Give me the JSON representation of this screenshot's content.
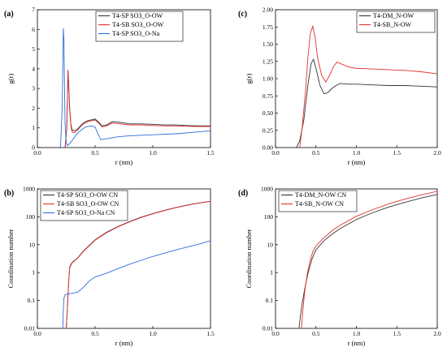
{
  "chart_data": [
    {
      "type": "line",
      "panel": "(a)",
      "xlabel": "r (nm)",
      "ylabel": "g(r)",
      "xlim": [
        0,
        1.5
      ],
      "ylim": [
        0,
        7
      ],
      "xticks": [
        "0.0",
        "0.5",
        "1.0",
        "1.5"
      ],
      "yticks": [
        "0",
        "1",
        "2",
        "3",
        "4",
        "5",
        "6",
        "7"
      ],
      "yscale": "linear",
      "legend_position": "top-right",
      "series": [
        {
          "name": "T4-SP SO3_O-OW",
          "color": "#333333",
          "x": [
            0.24,
            0.255,
            0.265,
            0.27,
            0.28,
            0.29,
            0.3,
            0.32,
            0.35,
            0.38,
            0.4,
            0.43,
            0.46,
            0.5,
            0.53,
            0.56,
            0.6,
            0.65,
            0.7,
            0.8,
            0.9,
            1.0,
            1.1,
            1.2,
            1.3,
            1.4,
            1.5
          ],
          "y": [
            0,
            1.0,
            3.9,
            3.4,
            2.0,
            1.2,
            0.9,
            0.85,
            0.95,
            1.15,
            1.25,
            1.35,
            1.4,
            1.45,
            1.3,
            1.1,
            1.15,
            1.32,
            1.3,
            1.2,
            1.2,
            1.18,
            1.15,
            1.15,
            1.12,
            1.1,
            1.1
          ]
        },
        {
          "name": "T4-SB SO3_O-OW",
          "color": "#e03030",
          "x": [
            0.24,
            0.255,
            0.265,
            0.27,
            0.28,
            0.29,
            0.3,
            0.32,
            0.35,
            0.38,
            0.4,
            0.43,
            0.46,
            0.5,
            0.53,
            0.56,
            0.6,
            0.65,
            0.7,
            0.8,
            0.9,
            1.0,
            1.1,
            1.2,
            1.3,
            1.4,
            1.5
          ],
          "y": [
            0,
            1.0,
            3.95,
            3.3,
            1.9,
            1.1,
            0.8,
            0.75,
            0.9,
            1.1,
            1.2,
            1.3,
            1.35,
            1.4,
            1.25,
            1.05,
            1.1,
            1.25,
            1.22,
            1.15,
            1.15,
            1.12,
            1.1,
            1.1,
            1.08,
            1.07,
            1.07
          ]
        },
        {
          "name": "T4-SP SO3_O-Na",
          "color": "#2a6fdb",
          "x": [
            0.2,
            0.215,
            0.225,
            0.23,
            0.235,
            0.24,
            0.25,
            0.26,
            0.28,
            0.3,
            0.33,
            0.37,
            0.42,
            0.46,
            0.5,
            0.52,
            0.55,
            0.6,
            0.7,
            0.8,
            1.0,
            1.2,
            1.4,
            1.5
          ],
          "y": [
            0,
            2.0,
            6.05,
            5.5,
            3.0,
            1.2,
            0.25,
            0.1,
            0.2,
            0.35,
            0.6,
            0.85,
            1.05,
            1.1,
            1.05,
            0.75,
            0.4,
            0.45,
            0.55,
            0.6,
            0.65,
            0.7,
            0.8,
            0.85
          ]
        }
      ]
    },
    {
      "type": "line",
      "panel": "(b)",
      "xlabel": "r (nm)",
      "ylabel": "Coordination number",
      "xlim": [
        0,
        1.5
      ],
      "ylim": [
        0.01,
        1000
      ],
      "xticks": [
        "0.0",
        "0.5",
        "1.0",
        "1.5"
      ],
      "yticks": [
        "0.01",
        "0.1",
        "1",
        "10",
        "100",
        "1000"
      ],
      "yscale": "log",
      "legend_position": "top-left",
      "series": [
        {
          "name": "T4-SP SO3_O-OW CN",
          "color": "#333333",
          "x": [
            0.25,
            0.26,
            0.27,
            0.28,
            0.3,
            0.35,
            0.4,
            0.5,
            0.6,
            0.7,
            0.8,
            0.9,
            1.0,
            1.1,
            1.2,
            1.3,
            1.4,
            1.5
          ],
          "y": [
            0.01,
            0.05,
            0.4,
            1.6,
            2.3,
            3.4,
            6.0,
            15,
            28,
            45,
            68,
            97,
            130,
            170,
            215,
            265,
            315,
            360
          ]
        },
        {
          "name": "T4-SB SO3_O-OW CN",
          "color": "#e03030",
          "x": [
            0.25,
            0.26,
            0.27,
            0.28,
            0.3,
            0.35,
            0.4,
            0.5,
            0.6,
            0.7,
            0.8,
            0.9,
            1.0,
            1.1,
            1.2,
            1.3,
            1.4,
            1.5
          ],
          "y": [
            0.01,
            0.05,
            0.4,
            1.5,
            2.2,
            3.3,
            5.8,
            14.5,
            27,
            44,
            66,
            95,
            128,
            168,
            212,
            262,
            312,
            355
          ]
        },
        {
          "name": "T4-SP SO3_O-Na CN",
          "color": "#2a6fdb",
          "x": [
            0.22,
            0.225,
            0.23,
            0.24,
            0.26,
            0.3,
            0.35,
            0.4,
            0.45,
            0.5,
            0.6,
            0.7,
            0.8,
            1.0,
            1.2,
            1.4,
            1.5
          ],
          "y": [
            0.01,
            0.05,
            0.12,
            0.16,
            0.17,
            0.18,
            0.2,
            0.3,
            0.5,
            0.7,
            0.95,
            1.4,
            2.0,
            3.8,
            6.5,
            10.5,
            14
          ]
        }
      ]
    },
    {
      "type": "line",
      "panel": "(c)",
      "xlabel": "r (nm)",
      "ylabel": "g(r)",
      "xlim": [
        0,
        2.0
      ],
      "ylim": [
        0,
        2.0
      ],
      "xticks": [
        "0.0",
        "0.5",
        "1.0",
        "1.5",
        "2.0"
      ],
      "yticks": [
        "0.00",
        "0.25",
        "0.50",
        "0.75",
        "1.00",
        "1.25",
        "1.50",
        "1.75",
        "2.00"
      ],
      "yscale": "linear",
      "legend_position": "top-right",
      "series": [
        {
          "name": "T4-DM_N-OW",
          "color": "#333333",
          "x": [
            0.26,
            0.3,
            0.35,
            0.4,
            0.44,
            0.47,
            0.5,
            0.55,
            0.6,
            0.65,
            0.7,
            0.75,
            0.8,
            0.9,
            1.0,
            1.2,
            1.4,
            1.6,
            1.8,
            2.0
          ],
          "y": [
            0,
            0.1,
            0.4,
            0.9,
            1.22,
            1.28,
            1.15,
            0.9,
            0.78,
            0.8,
            0.86,
            0.9,
            0.93,
            0.92,
            0.92,
            0.91,
            0.9,
            0.9,
            0.89,
            0.88
          ]
        },
        {
          "name": "T4-SB_N-OW",
          "color": "#e03030",
          "x": [
            0.3,
            0.33,
            0.37,
            0.4,
            0.43,
            0.46,
            0.49,
            0.52,
            0.57,
            0.62,
            0.67,
            0.72,
            0.76,
            0.8,
            0.9,
            1.0,
            1.2,
            1.4,
            1.6,
            1.8,
            2.0
          ],
          "y": [
            0,
            0.3,
            0.8,
            1.3,
            1.65,
            1.76,
            1.6,
            1.3,
            1.05,
            0.95,
            1.05,
            1.18,
            1.24,
            1.22,
            1.17,
            1.15,
            1.14,
            1.13,
            1.12,
            1.1,
            1.07
          ]
        }
      ]
    },
    {
      "type": "line",
      "panel": "(d)",
      "xlabel": "r (nm)",
      "ylabel": "Coordination number",
      "xlim": [
        0,
        2.0
      ],
      "ylim": [
        0.01,
        1000
      ],
      "xticks": [
        "0.0",
        "0.5",
        "1.0",
        "1.5",
        "2.0"
      ],
      "yticks": [
        "0.01",
        "0.1",
        "1",
        "10",
        "100",
        "1000"
      ],
      "yscale": "log",
      "legend_position": "top-left",
      "series": [
        {
          "name": "T4-DM_N-OW CN",
          "color": "#333333",
          "x": [
            0.29,
            0.31,
            0.33,
            0.36,
            0.4,
            0.45,
            0.5,
            0.6,
            0.7,
            0.8,
            1.0,
            1.2,
            1.4,
            1.6,
            1.8,
            2.0
          ],
          "y": [
            0.01,
            0.03,
            0.08,
            0.25,
            0.9,
            3.0,
            6.5,
            14,
            24,
            38,
            80,
            140,
            225,
            330,
            470,
            640
          ]
        },
        {
          "name": "T4-SB_N-OW CN",
          "color": "#e03030",
          "x": [
            0.32,
            0.34,
            0.36,
            0.39,
            0.42,
            0.46,
            0.5,
            0.6,
            0.7,
            0.8,
            1.0,
            1.2,
            1.4,
            1.6,
            1.8,
            2.0
          ],
          "y": [
            0.01,
            0.05,
            0.2,
            0.8,
            2.2,
            5.5,
            9.0,
            18,
            32,
            50,
            105,
            180,
            290,
            430,
            610,
            820
          ]
        }
      ]
    }
  ]
}
